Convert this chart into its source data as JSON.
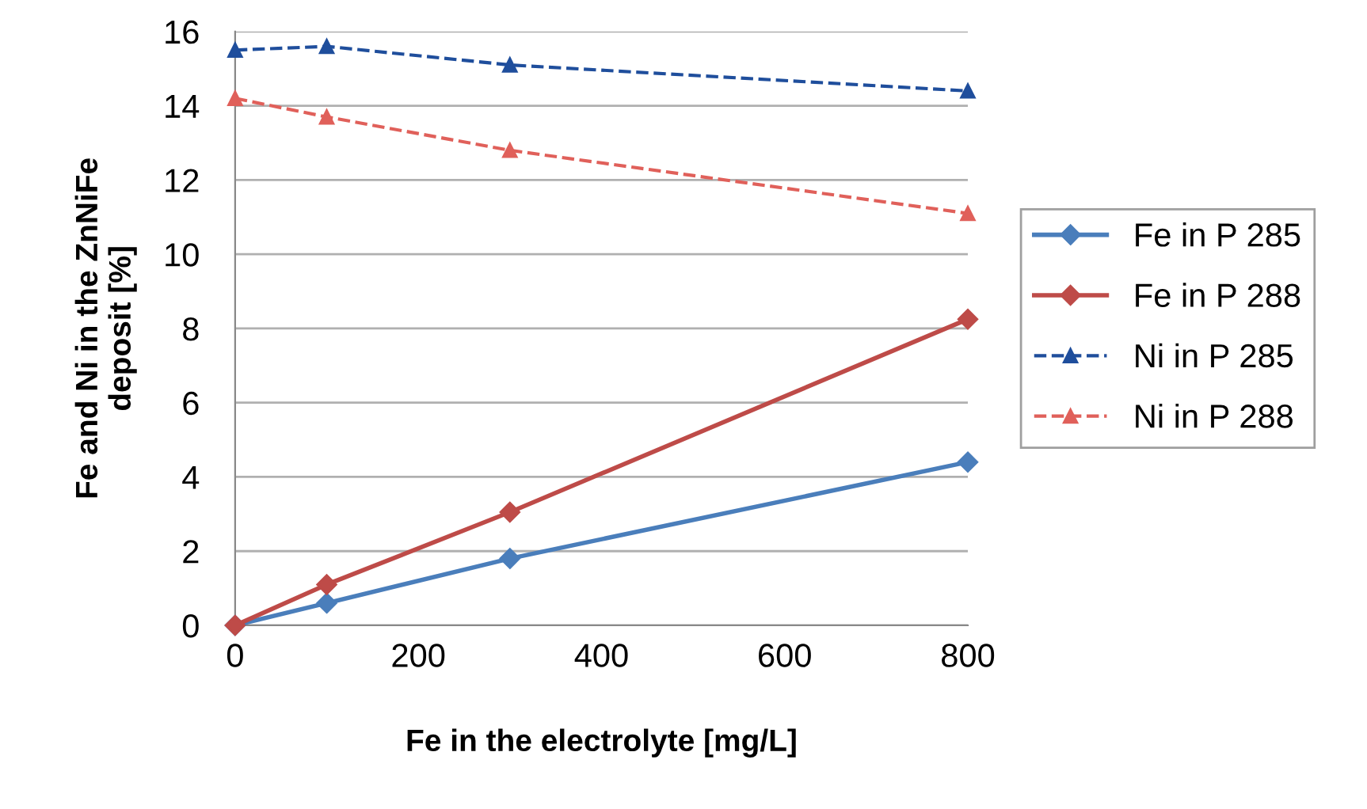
{
  "chart_data": {
    "type": "line",
    "xlabel": "Fe in the electrolyte [mg/L]",
    "ylabel": "Fe and Ni in the ZnNiFe\ndeposit [%]",
    "x": [
      0,
      100,
      300,
      800
    ],
    "xlim": [
      0,
      800
    ],
    "xticks": [
      0,
      200,
      400,
      600,
      800
    ],
    "ylim": [
      0,
      16
    ],
    "yticks": [
      0,
      2,
      4,
      6,
      8,
      10,
      12,
      14,
      16
    ],
    "grid": "y",
    "legend": "right",
    "series": [
      {
        "name": "Fe in P 285",
        "color": "#4a7ebb",
        "values": [
          0,
          0.6,
          1.8,
          4.4
        ],
        "marker": "diamond",
        "line_style": "solid"
      },
      {
        "name": "Fe in P 288",
        "color": "#be4b48",
        "values": [
          0,
          1.1,
          3.05,
          8.25
        ],
        "marker": "diamond",
        "line_style": "solid"
      },
      {
        "name": "Ni in P 285",
        "color": "#1f4e9c",
        "values": [
          15.5,
          15.6,
          15.1,
          14.4
        ],
        "marker": "triangle",
        "line_style": "dashed"
      },
      {
        "name": "Ni in P 288",
        "color": "#e0605a",
        "values": [
          14.2,
          13.7,
          12.8,
          11.1
        ],
        "marker": "triangle",
        "line_style": "dashed"
      }
    ]
  }
}
